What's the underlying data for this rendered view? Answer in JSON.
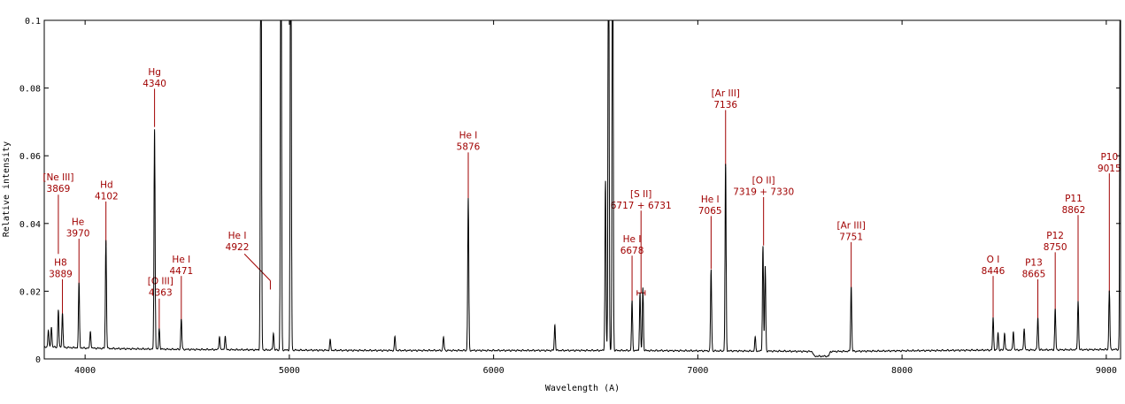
{
  "chart_data": {
    "type": "line",
    "title": "",
    "xlabel": "Wavelength (A)",
    "ylabel": "Relative intensity",
    "xlim": [
      3800,
      9070
    ],
    "ylim": [
      0,
      0.1
    ],
    "x_ticks": [
      {
        "value": 4000,
        "label": "4000"
      },
      {
        "value": 5000,
        "label": "5000"
      },
      {
        "value": 6000,
        "label": "6000"
      },
      {
        "value": 7000,
        "label": "7000"
      },
      {
        "value": 8000,
        "label": "8000"
      },
      {
        "value": 9000,
        "label": "9000"
      }
    ],
    "y_ticks": [
      {
        "value": 0,
        "label": "0"
      },
      {
        "value": 0.02,
        "label": "0.02"
      },
      {
        "value": 0.04,
        "label": "0.04"
      },
      {
        "value": 0.06,
        "label": "0.06"
      },
      {
        "value": 0.08,
        "label": "0.08"
      },
      {
        "value": 0.1,
        "label": "0.1"
      }
    ],
    "grid": false,
    "continuum": [
      [
        3800,
        0.0035
      ],
      [
        3850,
        0.0035
      ],
      [
        4000,
        0.0032
      ],
      [
        4200,
        0.003
      ],
      [
        4500,
        0.0028
      ],
      [
        4800,
        0.0027
      ],
      [
        5000,
        0.0026
      ],
      [
        5400,
        0.0025
      ],
      [
        5800,
        0.0025
      ],
      [
        6200,
        0.0025
      ],
      [
        6600,
        0.0025
      ],
      [
        7000,
        0.0024
      ],
      [
        7400,
        0.0023
      ],
      [
        7560,
        0.0022
      ],
      [
        7570,
        0.0008
      ],
      [
        7640,
        0.0008
      ],
      [
        7650,
        0.0022
      ],
      [
        8000,
        0.0024
      ],
      [
        8400,
        0.0026
      ],
      [
        8800,
        0.0027
      ],
      [
        9070,
        0.0028
      ]
    ],
    "lines": [
      {
        "wl": 3820,
        "peak": 0.005
      },
      {
        "wl": 3835,
        "peak": 0.006
      },
      {
        "wl": 3869,
        "peak": 0.011
      },
      {
        "wl": 3889,
        "peak": 0.01
      },
      {
        "wl": 3970,
        "peak": 0.019
      },
      {
        "wl": 4026,
        "peak": 0.005
      },
      {
        "wl": 4102,
        "peak": 0.032
      },
      {
        "wl": 4340,
        "peak": 0.065
      },
      {
        "wl": 4363,
        "peak": 0.006
      },
      {
        "wl": 4471,
        "peak": 0.009
      },
      {
        "wl": 4658,
        "peak": 0.004
      },
      {
        "wl": 4686,
        "peak": 0.004
      },
      {
        "wl": 4861,
        "peak": 0.15
      },
      {
        "wl": 4922,
        "peak": 0.005
      },
      {
        "wl": 4959,
        "peak": 0.15
      },
      {
        "wl": 5007,
        "peak": 0.15
      },
      {
        "wl": 5200,
        "peak": 0.003
      },
      {
        "wl": 5517,
        "peak": 0.004
      },
      {
        "wl": 5755,
        "peak": 0.004
      },
      {
        "wl": 5876,
        "peak": 0.045
      },
      {
        "wl": 6300,
        "peak": 0.0075
      },
      {
        "wl": 6548,
        "peak": 0.05
      },
      {
        "wl": 6563,
        "peak": 0.15
      },
      {
        "wl": 6583,
        "peak": 0.15
      },
      {
        "wl": 6678,
        "peak": 0.0145
      },
      {
        "wl": 6717,
        "peak": 0.017
      },
      {
        "wl": 6731,
        "peak": 0.0185
      },
      {
        "wl": 7065,
        "peak": 0.024
      },
      {
        "wl": 7136,
        "peak": 0.055
      },
      {
        "wl": 7281,
        "peak": 0.004
      },
      {
        "wl": 7319,
        "peak": 0.031
      },
      {
        "wl": 7330,
        "peak": 0.025
      },
      {
        "wl": 7751,
        "peak": 0.019
      },
      {
        "wl": 8446,
        "peak": 0.0095
      },
      {
        "wl": 8470,
        "peak": 0.005
      },
      {
        "wl": 8502,
        "peak": 0.005
      },
      {
        "wl": 8545,
        "peak": 0.0055
      },
      {
        "wl": 8598,
        "peak": 0.0065
      },
      {
        "wl": 8665,
        "peak": 0.0095
      },
      {
        "wl": 8750,
        "peak": 0.012
      },
      {
        "wl": 8862,
        "peak": 0.0145
      },
      {
        "wl": 9015,
        "peak": 0.0175
      },
      {
        "wl": 9069,
        "peak": 0.15
      }
    ],
    "annotations": [
      {
        "name": "Ne III",
        "label": "[Ne III]",
        "wavelength": "3869",
        "text_x": 3869,
        "text_y": 0.0527,
        "line_top": 0.0485,
        "line_bottom": 0.031
      },
      {
        "name": "H8",
        "label": "H8",
        "wavelength": "3889",
        "text_x": 3880,
        "text_y": 0.0275,
        "line_top": 0.0235,
        "line_bottom": 0.011
      },
      {
        "name": "He 3970",
        "label": "He",
        "wavelength": "3970",
        "text_x": 3965,
        "text_y": 0.0395,
        "line_top": 0.0355,
        "line_bottom": 0.0205
      },
      {
        "name": "Hd",
        "label": "Hd",
        "wavelength": "4102",
        "text_x": 4105,
        "text_y": 0.0505,
        "line_top": 0.0465,
        "line_bottom": 0.0335
      },
      {
        "name": "Hg",
        "label": "Hg",
        "wavelength": "4340",
        "text_x": 4340,
        "text_y": 0.0838,
        "line_top": 0.0798,
        "line_bottom": 0.0685
      },
      {
        "name": "O III 4363",
        "label": "[O III]",
        "wavelength": "4363",
        "text_x": 4369,
        "text_y": 0.022,
        "line_top": 0.0178,
        "line_bottom": 0.008
      },
      {
        "name": "He I 4471",
        "label": "He I",
        "wavelength": "4471",
        "text_x": 4471,
        "text_y": 0.0285,
        "line_top": 0.0245,
        "line_bottom": 0.0108
      },
      {
        "name": "He I 4922",
        "label": "He I",
        "wavelength": "4922",
        "text_x": 4745,
        "text_y": 0.0355,
        "line_top": 0.031,
        "line_bottom": 0.0205,
        "diag_from_x": 4780,
        "diag_to_x": 4907
      },
      {
        "name": "He I 5876",
        "label": "He I",
        "wavelength": "5876",
        "text_x": 5876,
        "text_y": 0.0652,
        "line_top": 0.061,
        "line_bottom": 0.0475
      },
      {
        "name": "S II",
        "label": "[S II]",
        "wavelength": "6717 + 6731",
        "text_x": 6722,
        "text_y": 0.0478,
        "line_top": 0.0438,
        "line_bottom": 0.0195,
        "bracket": [
          6703,
          6742
        ]
      },
      {
        "name": "He I 6678",
        "label": "He I",
        "wavelength": "6678",
        "text_x": 6678,
        "text_y": 0.0345,
        "line_top": 0.0305,
        "line_bottom": 0.0165
      },
      {
        "name": "He I 7065",
        "label": "He I",
        "wavelength": "7065",
        "text_x": 7060,
        "text_y": 0.0462,
        "line_top": 0.0422,
        "line_bottom": 0.0265
      },
      {
        "name": "Ar III 7136",
        "label": "[Ar III]",
        "wavelength": "7136",
        "text_x": 7136,
        "text_y": 0.0775,
        "line_top": 0.0735,
        "line_bottom": 0.057
      },
      {
        "name": "O II",
        "label": "[O II]",
        "wavelength": "7319 + 7330",
        "text_x": 7322,
        "text_y": 0.0518,
        "line_top": 0.0478,
        "line_bottom": 0.0335
      },
      {
        "name": "Ar III 7751",
        "label": "[Ar III]",
        "wavelength": "7751",
        "text_x": 7751,
        "text_y": 0.0385,
        "line_top": 0.0345,
        "line_bottom": 0.021
      },
      {
        "name": "O I",
        "label": "O I",
        "wavelength": "8446",
        "text_x": 8446,
        "text_y": 0.0285,
        "line_top": 0.0245,
        "line_bottom": 0.011
      },
      {
        "name": "P13",
        "label": "P13",
        "wavelength": "8665",
        "text_x": 8645,
        "text_y": 0.0275,
        "line_top": 0.0235,
        "line_bottom": 0.0108
      },
      {
        "name": "P12",
        "label": "P12",
        "wavelength": "8750",
        "text_x": 8750,
        "text_y": 0.0355,
        "line_top": 0.0315,
        "line_bottom": 0.0135
      },
      {
        "name": "P11",
        "label": "P11",
        "wavelength": "8862",
        "text_x": 8840,
        "text_y": 0.0465,
        "line_top": 0.0425,
        "line_bottom": 0.0163
      },
      {
        "name": "P10",
        "label": "P10",
        "wavelength": "9015",
        "text_x": 9015,
        "text_y": 0.0588,
        "line_top": 0.0548,
        "line_bottom": 0.0195
      }
    ]
  }
}
